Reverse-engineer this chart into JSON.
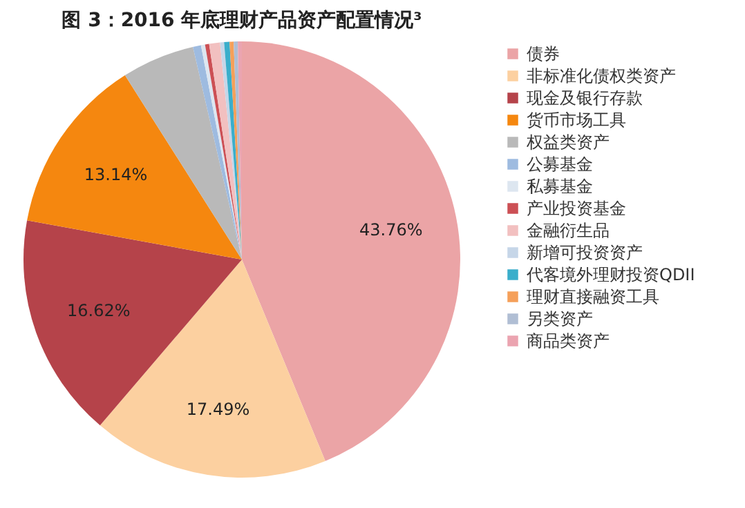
{
  "chart_data": {
    "type": "pie",
    "title": "图 3：2016 年底理财产品资产配置情况³",
    "categories": [
      "债券",
      "非标准化债权类资产",
      "现金及银行存款",
      "货币市场工具",
      "权益类资产",
      "公募基金",
      "私募基金",
      "产业投资基金",
      "金融衍生品",
      "新增可投资资产",
      "代客境外理财投资QDII",
      "理财直接融资工具",
      "另类资产",
      "商品类资产"
    ],
    "values": [
      43.76,
      17.49,
      16.62,
      13.14,
      5.39,
      0.6,
      0.3,
      0.3,
      0.8,
      0.3,
      0.4,
      0.3,
      0.3,
      0.3
    ],
    "colors": [
      "#eba4a6",
      "#fcd0a0",
      "#b5434a",
      "#f5870f",
      "#b9b9b9",
      "#9ebbe0",
      "#dde6f0",
      "#cc5055",
      "#f2c0c0",
      "#c6d6e8",
      "#3aaecb",
      "#f5a05a",
      "#b0bed4",
      "#eba4b0"
    ],
    "value_labels": [
      "43.76%",
      "17.49%",
      "16.62%",
      "13.14%",
      null,
      null,
      null,
      null,
      null,
      null,
      null,
      null,
      null,
      null
    ],
    "legend": "right"
  }
}
